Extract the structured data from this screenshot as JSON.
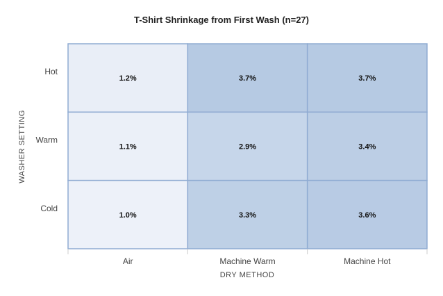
{
  "chart_data": {
    "type": "heatmap",
    "title": "T-Shirt Shrinkage from First Wash (n=27)",
    "xlabel": "DRY METHOD",
    "ylabel": "WASHER SETTING",
    "x_categories": [
      "Air",
      "Machine Warm",
      "Machine Hot"
    ],
    "y_categories": [
      "Hot",
      "Warm",
      "Cold"
    ],
    "values": [
      [
        1.2,
        3.7,
        3.7
      ],
      [
        1.1,
        2.9,
        3.4
      ],
      [
        1.0,
        3.3,
        3.6
      ]
    ],
    "value_labels": [
      [
        "1.2%",
        "3.7%",
        "3.7%"
      ],
      [
        "1.1%",
        "2.9%",
        "3.4%"
      ],
      [
        "1.0%",
        "3.3%",
        "3.6%"
      ]
    ],
    "unit": "%",
    "color_low": "#edf1f9",
    "color_high": "#b6cae3",
    "grid_line_color": "#8fabd2"
  }
}
